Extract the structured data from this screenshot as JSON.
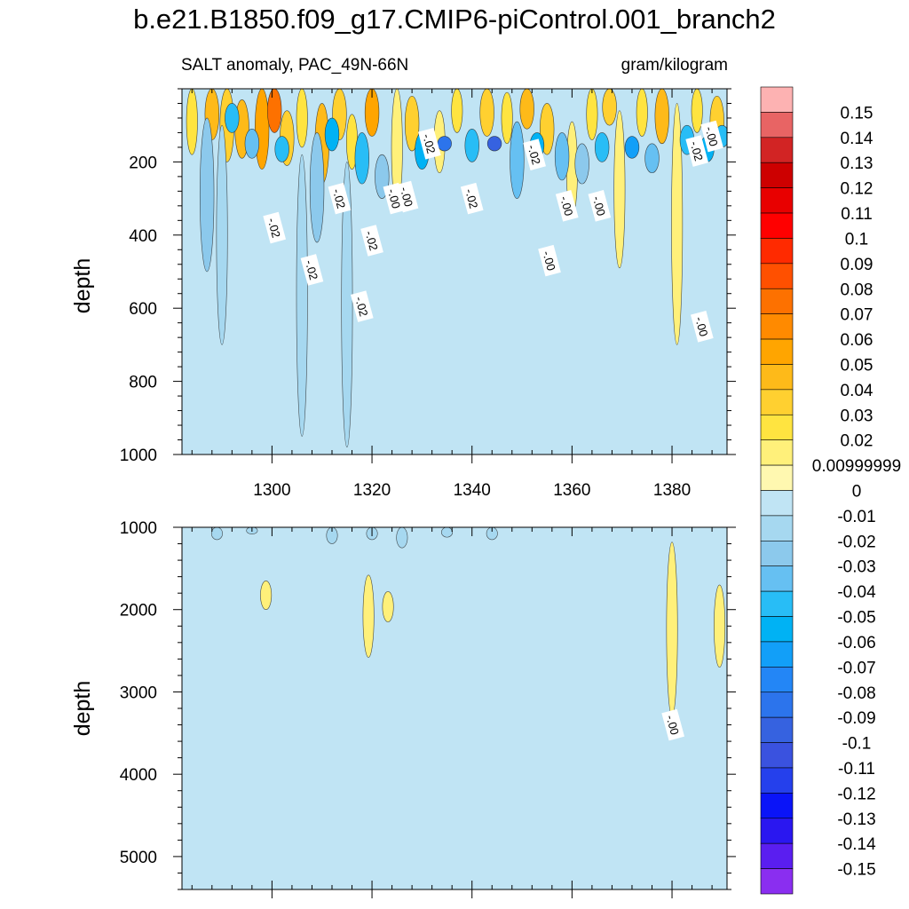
{
  "title": "b.e21.B1850.f09_g17.CMIP6-piControl.001_branch2",
  "subtitle_left": "SALT anomaly, PAC_49N-66N",
  "subtitle_right": "gram/kilogram",
  "chart_data": [
    {
      "type": "heatmap",
      "panel": "upper",
      "ylabel": "depth",
      "xlabel": "",
      "xlim": [
        1282,
        1391
      ],
      "ylim": [
        0,
        1000
      ],
      "y_reversed": true,
      "x_ticks": [
        1300,
        1320,
        1340,
        1360,
        1380
      ],
      "y_ticks": [
        200,
        400,
        600,
        800,
        1000
      ],
      "background_level": -0.01,
      "contour_labels": [
        {
          "text": "-.02",
          "x": 1300.5,
          "y": 380
        },
        {
          "text": "-.02",
          "x": 1308,
          "y": 495
        },
        {
          "text": "-.02",
          "x": 1313.5,
          "y": 300
        },
        {
          "text": "-.02",
          "x": 1318,
          "y": 595
        },
        {
          "text": "-.02",
          "x": 1320,
          "y": 415
        },
        {
          "text": "-.00",
          "x": 1324.5,
          "y": 300
        },
        {
          "text": "-.00",
          "x": 1327,
          "y": 295
        },
        {
          "text": "-.02",
          "x": 1331.5,
          "y": 150
        },
        {
          "text": "-.02",
          "x": 1340,
          "y": 300
        },
        {
          "text": "-.02",
          "x": 1352.5,
          "y": 180
        },
        {
          "text": "-.00",
          "x": 1355.5,
          "y": 470
        },
        {
          "text": "-.00",
          "x": 1359,
          "y": 320
        },
        {
          "text": "-.00",
          "x": 1365.5,
          "y": 320
        },
        {
          "text": "-.02",
          "x": 1385,
          "y": 170
        },
        {
          "text": "-.00",
          "x": 1386,
          "y": 650
        },
        {
          "text": "-.00",
          "x": 1388,
          "y": 130
        }
      ],
      "features": [
        {
          "x": 1284,
          "y0": 0,
          "y1": 180,
          "v": 0.02
        },
        {
          "x": 1288,
          "y0": 0,
          "y1": 140,
          "v": 0.04
        },
        {
          "x": 1291,
          "y0": 0,
          "y1": 200,
          "v": 0.03
        },
        {
          "x": 1294,
          "y0": 30,
          "y1": 190,
          "v": 0.04
        },
        {
          "x": 1298,
          "y0": 0,
          "y1": 220,
          "v": 0.05
        },
        {
          "x": 1300.5,
          "y0": 0,
          "y1": 120,
          "v": 0.07
        },
        {
          "x": 1303,
          "y0": 60,
          "y1": 210,
          "v": 0.03
        },
        {
          "x": 1306,
          "y0": 0,
          "y1": 160,
          "v": 0.02
        },
        {
          "x": 1310,
          "y0": 40,
          "y1": 260,
          "v": 0.04
        },
        {
          "x": 1313.5,
          "y0": 0,
          "y1": 140,
          "v": 0.03
        },
        {
          "x": 1316,
          "y0": 70,
          "y1": 220,
          "v": 0.02
        },
        {
          "x": 1320,
          "y0": 0,
          "y1": 130,
          "v": 0.05
        },
        {
          "x": 1325,
          "y0": 0,
          "y1": 320,
          "v": 0.01
        },
        {
          "x": 1328,
          "y0": 20,
          "y1": 170,
          "v": 0.03
        },
        {
          "x": 1333.5,
          "y0": 60,
          "y1": 230,
          "v": 0.01
        },
        {
          "x": 1337,
          "y0": 0,
          "y1": 120,
          "v": 0.02
        },
        {
          "x": 1343,
          "y0": 0,
          "y1": 130,
          "v": 0.03
        },
        {
          "x": 1347,
          "y0": 10,
          "y1": 150,
          "v": 0.02
        },
        {
          "x": 1351,
          "y0": 0,
          "y1": 110,
          "v": 0.04
        },
        {
          "x": 1355,
          "y0": 40,
          "y1": 180,
          "v": 0.03
        },
        {
          "x": 1360,
          "y0": 90,
          "y1": 350,
          "v": 0.01
        },
        {
          "x": 1364,
          "y0": 0,
          "y1": 140,
          "v": 0.02
        },
        {
          "x": 1367.5,
          "y0": 0,
          "y1": 100,
          "v": 0.03
        },
        {
          "x": 1369.5,
          "y0": 60,
          "y1": 490,
          "v": 0.01
        },
        {
          "x": 1374,
          "y0": 0,
          "y1": 130,
          "v": 0.02
        },
        {
          "x": 1378,
          "y0": 0,
          "y1": 150,
          "v": 0.04
        },
        {
          "x": 1381,
          "y0": 40,
          "y1": 700,
          "v": 0.01
        },
        {
          "x": 1385,
          "y0": 0,
          "y1": 120,
          "v": 0.02
        },
        {
          "x": 1389,
          "y0": 20,
          "y1": 160,
          "v": 0.03
        },
        {
          "x": 1287,
          "y0": 80,
          "y1": 500,
          "v": -0.03
        },
        {
          "x": 1290,
          "y0": 100,
          "y1": 700,
          "v": -0.02
        },
        {
          "x": 1292,
          "y0": 40,
          "y1": 120,
          "v": -0.05
        },
        {
          "x": 1296,
          "y0": 110,
          "y1": 190,
          "v": -0.04
        },
        {
          "x": 1302,
          "y0": 130,
          "y1": 200,
          "v": -0.05
        },
        {
          "x": 1306,
          "y0": 180,
          "y1": 950,
          "v": -0.02
        },
        {
          "x": 1309,
          "y0": 120,
          "y1": 420,
          "v": -0.03
        },
        {
          "x": 1312,
          "y0": 80,
          "y1": 170,
          "v": -0.06
        },
        {
          "x": 1315,
          "y0": 200,
          "y1": 980,
          "v": -0.02
        },
        {
          "x": 1318,
          "y0": 120,
          "y1": 260,
          "v": -0.05
        },
        {
          "x": 1322,
          "y0": 180,
          "y1": 300,
          "v": -0.03
        },
        {
          "x": 1330,
          "y0": 120,
          "y1": 220,
          "v": -0.06
        },
        {
          "x": 1334.5,
          "y0": 130,
          "y1": 170,
          "v": -0.09
        },
        {
          "x": 1340,
          "y0": 110,
          "y1": 200,
          "v": -0.05
        },
        {
          "x": 1344.5,
          "y0": 130,
          "y1": 170,
          "v": -0.1
        },
        {
          "x": 1349,
          "y0": 90,
          "y1": 300,
          "v": -0.04
        },
        {
          "x": 1353,
          "y0": 120,
          "y1": 190,
          "v": -0.06
        },
        {
          "x": 1358,
          "y0": 120,
          "y1": 250,
          "v": -0.04
        },
        {
          "x": 1362,
          "y0": 150,
          "y1": 260,
          "v": -0.03
        },
        {
          "x": 1366,
          "y0": 120,
          "y1": 200,
          "v": -0.05
        },
        {
          "x": 1372,
          "y0": 130,
          "y1": 190,
          "v": -0.07
        },
        {
          "x": 1376,
          "y0": 150,
          "y1": 230,
          "v": -0.04
        },
        {
          "x": 1383,
          "y0": 100,
          "y1": 180,
          "v": -0.05
        },
        {
          "x": 1387,
          "y0": 130,
          "y1": 200,
          "v": -0.06
        },
        {
          "x": 1390,
          "y0": 100,
          "y1": 160,
          "v": -0.05
        }
      ]
    },
    {
      "type": "heatmap",
      "panel": "lower",
      "ylabel": "depth",
      "xlabel": "",
      "xlim": [
        1282,
        1391
      ],
      "ylim": [
        1000,
        5400
      ],
      "y_reversed": true,
      "x_ticks": [
        1300,
        1320,
        1340,
        1360,
        1380
      ],
      "y_ticks": [
        1000,
        2000,
        3000,
        4000,
        5000
      ],
      "background_level": -0.01,
      "contour_labels": [
        {
          "text": "-.00",
          "x": 1380.2,
          "y": 3400
        }
      ],
      "features": [
        {
          "x": 1298.8,
          "y0": 1650,
          "y1": 2000,
          "v": 0.01
        },
        {
          "x": 1319.3,
          "y0": 1580,
          "y1": 2580,
          "v": 0.01
        },
        {
          "x": 1323.2,
          "y0": 1780,
          "y1": 2150,
          "v": 0.01
        },
        {
          "x": 1380,
          "y0": 1180,
          "y1": 3300,
          "v": 0.01
        },
        {
          "x": 1389.5,
          "y0": 1700,
          "y1": 2700,
          "v": 0.01
        },
        {
          "x": 1289,
          "y0": 1000,
          "y1": 1150,
          "v": -0.02
        },
        {
          "x": 1296,
          "y0": 1000,
          "y1": 1080,
          "v": -0.02
        },
        {
          "x": 1312,
          "y0": 1000,
          "y1": 1200,
          "v": -0.02
        },
        {
          "x": 1320,
          "y0": 1000,
          "y1": 1150,
          "v": -0.02
        },
        {
          "x": 1326,
          "y0": 1000,
          "y1": 1250,
          "v": -0.02
        },
        {
          "x": 1335,
          "y0": 1000,
          "y1": 1120,
          "v": -0.02
        },
        {
          "x": 1344,
          "y0": 1000,
          "y1": 1150,
          "v": -0.02
        }
      ]
    }
  ],
  "colorbar": {
    "labels": [
      "0.15",
      "0.14",
      "0.13",
      "0.12",
      "0.11",
      "0.1",
      "0.09",
      "0.08",
      "0.07",
      "0.06",
      "0.05",
      "0.04",
      "0.03",
      "0.02",
      "0.00999999",
      "0",
      "-0.01",
      "-0.02",
      "-0.03",
      "-0.04",
      "-0.05",
      "-0.06",
      "-0.07",
      "-0.08",
      "-0.09",
      "-0.1",
      "-0.11",
      "-0.12",
      "-0.13",
      "-0.14",
      "-0.15"
    ],
    "colors": [
      "#fdb2b2",
      "#e86464",
      "#d22424",
      "#cd0000",
      "#e80000",
      "#ff0000",
      "#ff2a00",
      "#ff5000",
      "#fd7100",
      "#ff8a00",
      "#ffa500",
      "#feba19",
      "#ffd030",
      "#ffe440",
      "#fff07a",
      "#fff8b0",
      "#c0e4f4",
      "#a6d8f0",
      "#8cc9ec",
      "#66c0f2",
      "#28bdf6",
      "#00b2f4",
      "#129ff8",
      "#2386f6",
      "#2c74ec",
      "#3662e0",
      "#3a52df",
      "#2540ec",
      "#0a14f8",
      "#2a17f0",
      "#5a1ef0",
      "#8a2ef0"
    ]
  }
}
